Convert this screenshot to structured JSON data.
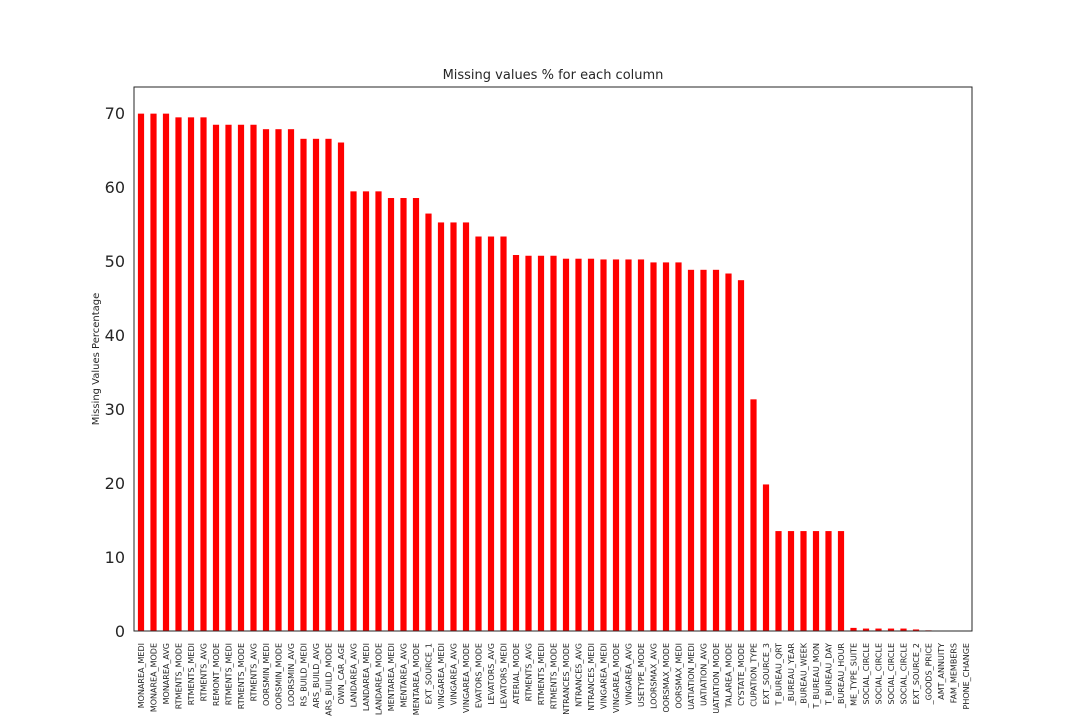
{
  "chart_data": {
    "type": "bar",
    "title": "Missing values % for each column",
    "xlabel": "",
    "ylabel": "Missing Values Percentage",
    "ylim": [
      0,
      73.5
    ],
    "yticks": [
      0,
      10,
      20,
      30,
      40,
      50,
      60,
      70
    ],
    "grid": false,
    "legend": "none",
    "bar_color": "#ff0000",
    "categories": [
      "MONAREA_MEDI",
      "MONAREA_MODE",
      "MONAREA_AVG",
      "RTMENTS_MODE",
      "RTMENTS_MEDI",
      "RTMENTS_AVG",
      "REMONT_MODE",
      "RTMENTS_MEDI",
      "RTMENTS_MODE",
      "RTMENTS_AVG",
      "OORSMIN_MEDI",
      "OORSMIN_MODE",
      "LOORSMIN_AVG",
      "RS_BUILD_MEDI",
      "ARS_BUILD_AVG",
      "ARS_BUILD_MODE",
      "OWN_CAR_AGE",
      "LANDAREA_AVG",
      "LANDAREA_MEDI",
      "LANDAREA_MODE",
      "MENTAREA_MEDI",
      "MENTAREA_AVG",
      "MENTAREA_MODE",
      "EXT_SOURCE_1",
      "VINGAREA_MEDI",
      "VINGAREA_AVG",
      "VINGAREA_MODE",
      "EVATORS_MODE",
      "LEVATORS_AVG",
      "LEVATORS_MEDI",
      "ATERIAL_MODE",
      "RTMENTS_AVG",
      "RTMENTS_MEDI",
      "RTMENTS_MODE",
      "NTRANCES_MODE",
      "NTRANCES_AVG",
      "NTRANCES_MEDI",
      "VINGAREA_MEDI",
      "VINGAREA_MODE",
      "VINGAREA_AVG",
      "USETYPE_MODE",
      "LOORSMAX_AVG",
      "OORSMAX_MODE",
      "OORSMAX_MEDI",
      "UATIATION_MEDI",
      "UATIATION_AVG",
      "UATIATION_MODE",
      "TALAREA_MODE",
      "CYSTATE_MODE",
      "CUPATION_TYPE",
      "EXT_SOURCE_3",
      "T_BUREAU_QRT",
      "_BUREAU_YEAR",
      "_BUREAU_WEEK",
      "T_BUREAU_MON",
      "T_BUREAU_DAY",
      "_BUREAU_HOUR",
      "ME_TYPE_SUITE",
      "SOCIAL_CIRCLE",
      "SOCIAL_CIRCLE",
      "SOCIAL_CIRCLE",
      "SOCIAL_CIRCLE",
      "EXT_SOURCE_2",
      "_GOODS_PRICE",
      "AMT_ANNUITY",
      "FAM_MEMBERS",
      "PHONE_CHANGE"
    ],
    "values": [
      69.9,
      69.9,
      69.9,
      69.4,
      69.4,
      69.4,
      68.4,
      68.4,
      68.4,
      68.4,
      67.8,
      67.8,
      67.8,
      66.5,
      66.5,
      66.5,
      66.0,
      59.4,
      59.4,
      59.4,
      58.5,
      58.5,
      58.5,
      56.4,
      55.2,
      55.2,
      55.2,
      53.3,
      53.3,
      53.3,
      50.8,
      50.7,
      50.7,
      50.7,
      50.3,
      50.3,
      50.3,
      50.2,
      50.2,
      50.2,
      50.2,
      49.8,
      49.8,
      49.8,
      48.8,
      48.8,
      48.8,
      48.3,
      47.4,
      31.3,
      19.8,
      13.5,
      13.5,
      13.5,
      13.5,
      13.5,
      13.5,
      0.42,
      0.33,
      0.33,
      0.33,
      0.33,
      0.21,
      0.09,
      0.004,
      0.001,
      0.0003
    ]
  }
}
